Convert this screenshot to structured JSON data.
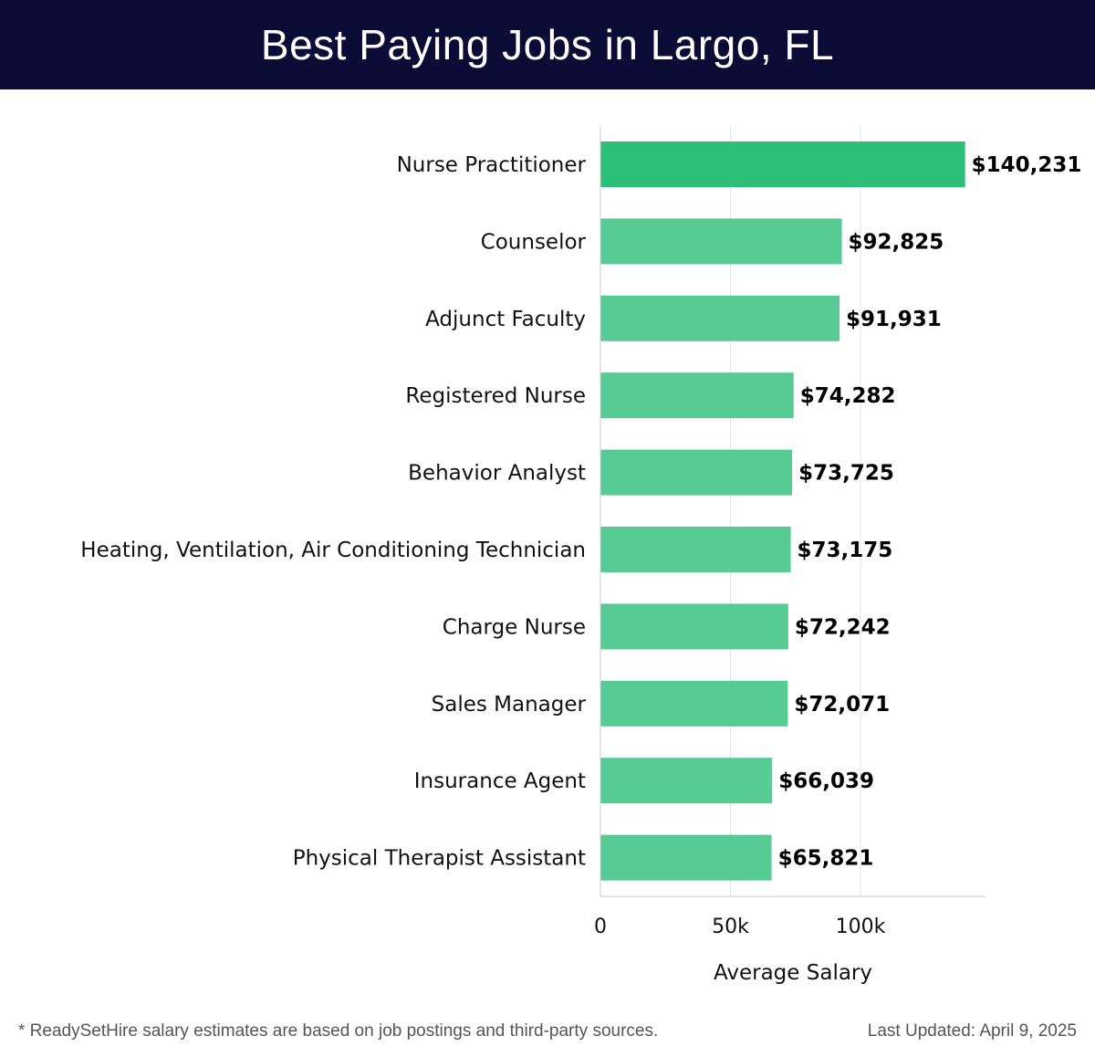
{
  "header": {
    "title": "Best Paying Jobs in Largo, FL"
  },
  "footer": {
    "note": "* ReadySetHire salary estimates are based on job postings and third-party sources.",
    "updated": "Last Updated: April 9, 2025"
  },
  "colors": {
    "header_bg": "#0b0c35",
    "bar_top": "#2bbf77",
    "bar": "#56cb93",
    "grid": "#e3e3e3",
    "axis": "#cccccc"
  },
  "chart_data": {
    "type": "bar",
    "orientation": "horizontal",
    "title": "Best Paying Jobs in Largo, FL",
    "xlabel": "Average Salary",
    "ylabel": "",
    "xlim": [
      0,
      147000
    ],
    "xticks": [
      0,
      50000,
      100000
    ],
    "xtick_labels": [
      "0",
      "50k",
      "100k"
    ],
    "grid": true,
    "categories": [
      "Nurse Practitioner",
      "Counselor",
      "Adjunct Faculty",
      "Registered Nurse",
      "Behavior Analyst",
      "Heating, Ventilation, Air Conditioning Technician",
      "Charge Nurse",
      "Sales Manager",
      "Insurance Agent",
      "Physical Therapist Assistant"
    ],
    "values": [
      140231,
      92825,
      91931,
      74282,
      73725,
      73175,
      72242,
      72071,
      66039,
      65821
    ],
    "value_labels": [
      "$140,231",
      "$92,825",
      "$91,931",
      "$74,282",
      "$73,725",
      "$73,175",
      "$72,242",
      "$72,071",
      "$66,039",
      "$65,821"
    ]
  }
}
